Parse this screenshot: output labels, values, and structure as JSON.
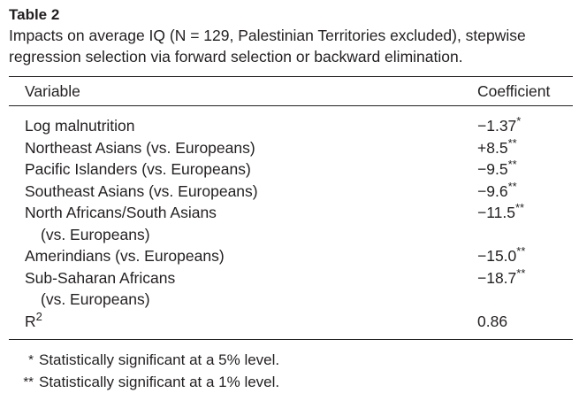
{
  "table": {
    "label": "Table 2",
    "caption_line1": "Impacts on average IQ (N = 129, Palestinian Territories excluded), stepwise",
    "caption_line2": "regression selection via forward selection or backward elimination.",
    "headers": {
      "variable": "Variable",
      "coefficient": "Coefficient"
    },
    "rows": [
      {
        "variable": "Log malnutrition",
        "variable_cont": "",
        "coefficient": "−1.37",
        "sig": "*"
      },
      {
        "variable": "Northeast Asians (vs. Europeans)",
        "variable_cont": "",
        "coefficient": "+8.5",
        "sig": "**"
      },
      {
        "variable": "Pacific Islanders (vs. Europeans)",
        "variable_cont": "",
        "coefficient": "−9.5",
        "sig": "**"
      },
      {
        "variable": "Southeast Asians (vs. Europeans)",
        "variable_cont": "",
        "coefficient": "−9.6",
        "sig": "**"
      },
      {
        "variable": "North Africans/South Asians",
        "variable_cont": "(vs. Europeans)",
        "coefficient": "−11.5",
        "sig": "**"
      },
      {
        "variable": "Amerindians (vs. Europeans)",
        "variable_cont": "",
        "coefficient": "−15.0",
        "sig": "**"
      },
      {
        "variable": "Sub-Saharan Africans",
        "variable_cont": "(vs. Europeans)",
        "coefficient": "−18.7",
        "sig": "**"
      }
    ],
    "r_squared": {
      "label_base": "R",
      "label_sup": "2",
      "value": "0.86"
    },
    "footnotes": [
      {
        "symbol": "*",
        "text": "Statistically significant at a 5% level."
      },
      {
        "symbol": "**",
        "text": "Statistically significant at a 1% level."
      }
    ]
  }
}
